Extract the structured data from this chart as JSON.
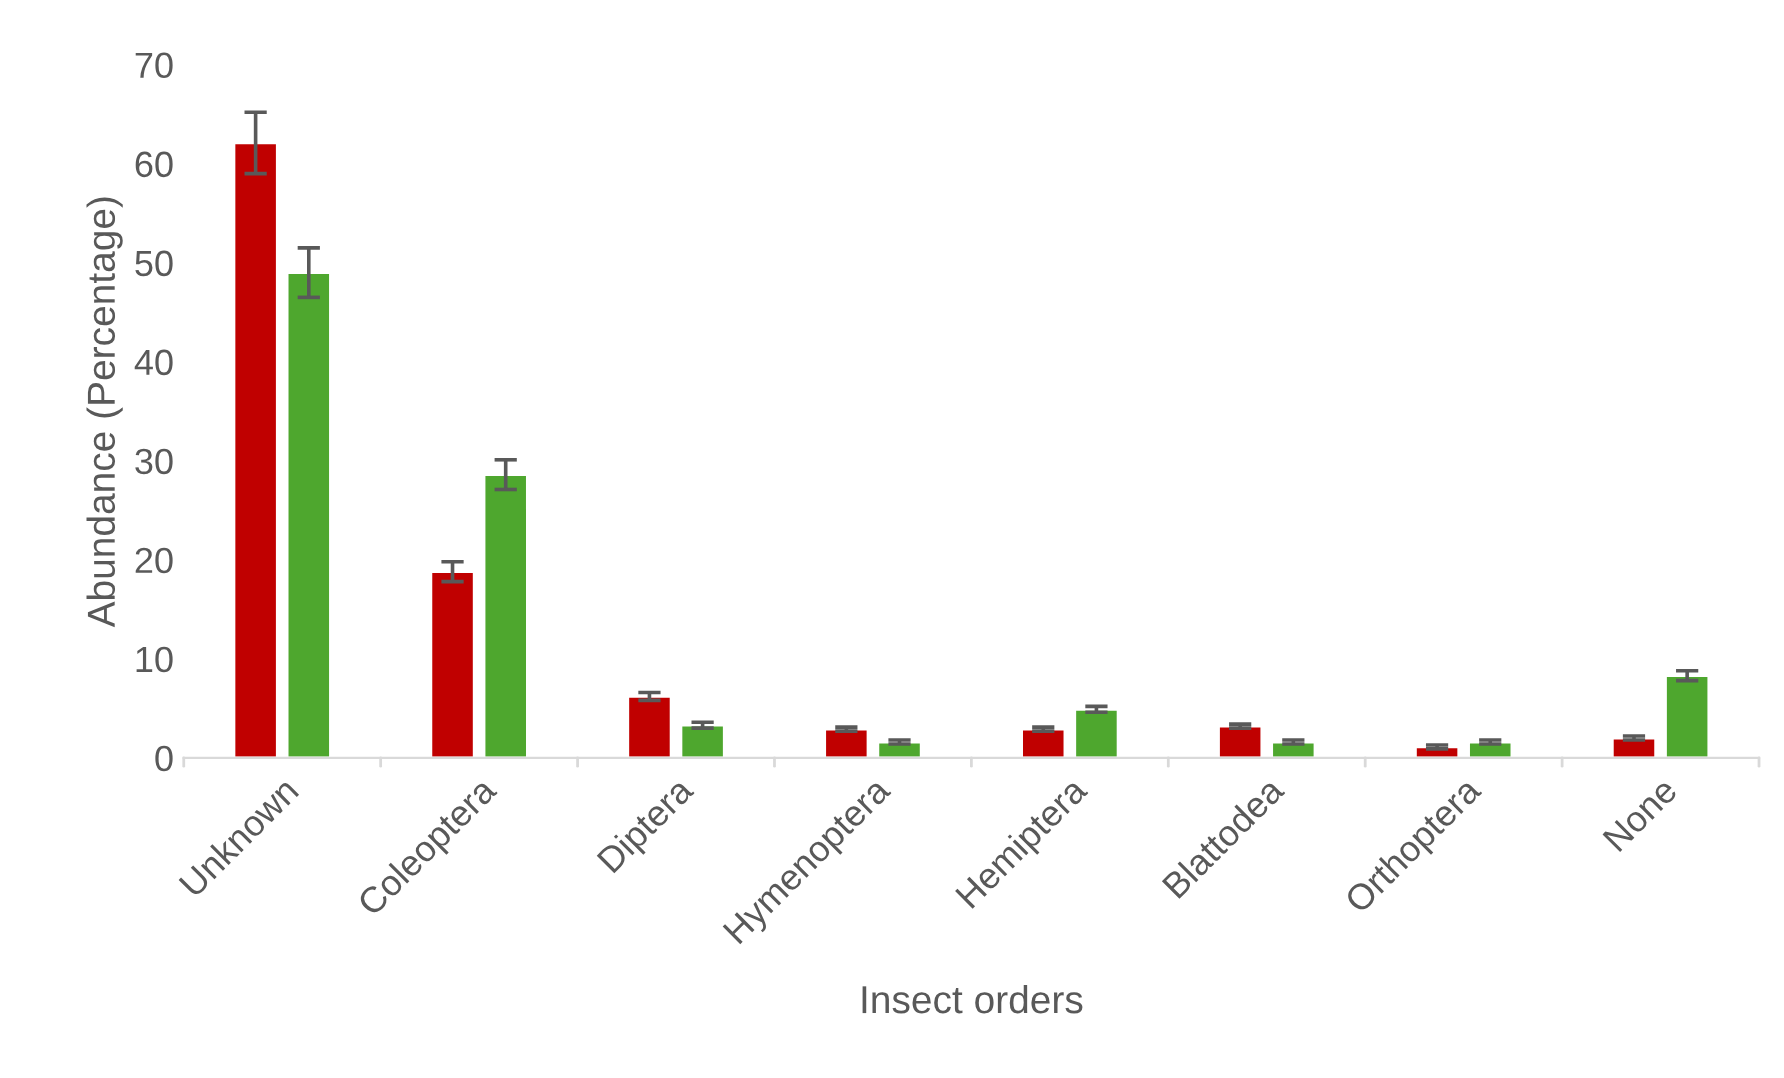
{
  "chart_data": {
    "type": "bar",
    "xlabel": "Insect orders",
    "ylabel": "Abundance (Percentage)",
    "categories": [
      "Unknown",
      "Coleoptera",
      "Diptera",
      "Hymenoptera",
      "Hemiptera",
      "Blattodea",
      "Orthoptera",
      "None"
    ],
    "series": [
      {
        "color": "#c00000",
        "values": [
          62.1,
          18.8,
          6.2,
          2.9,
          2.9,
          3.2,
          1.1,
          2.0
        ],
        "errors": [
          3.1,
          1.0,
          0.4,
          0.2,
          0.2,
          0.2,
          0.2,
          0.2
        ]
      },
      {
        "color": "#4ea72e",
        "values": [
          49.0,
          28.6,
          3.3,
          1.6,
          4.9,
          1.6,
          1.6,
          8.3
        ],
        "errors": [
          2.5,
          1.5,
          0.3,
          0.2,
          0.3,
          0.2,
          0.2,
          0.5
        ]
      }
    ],
    "ylim": [
      0,
      70
    ],
    "yticks": [
      0,
      10,
      20,
      30,
      40,
      50,
      60,
      70
    ],
    "grid": false,
    "legend": false
  }
}
